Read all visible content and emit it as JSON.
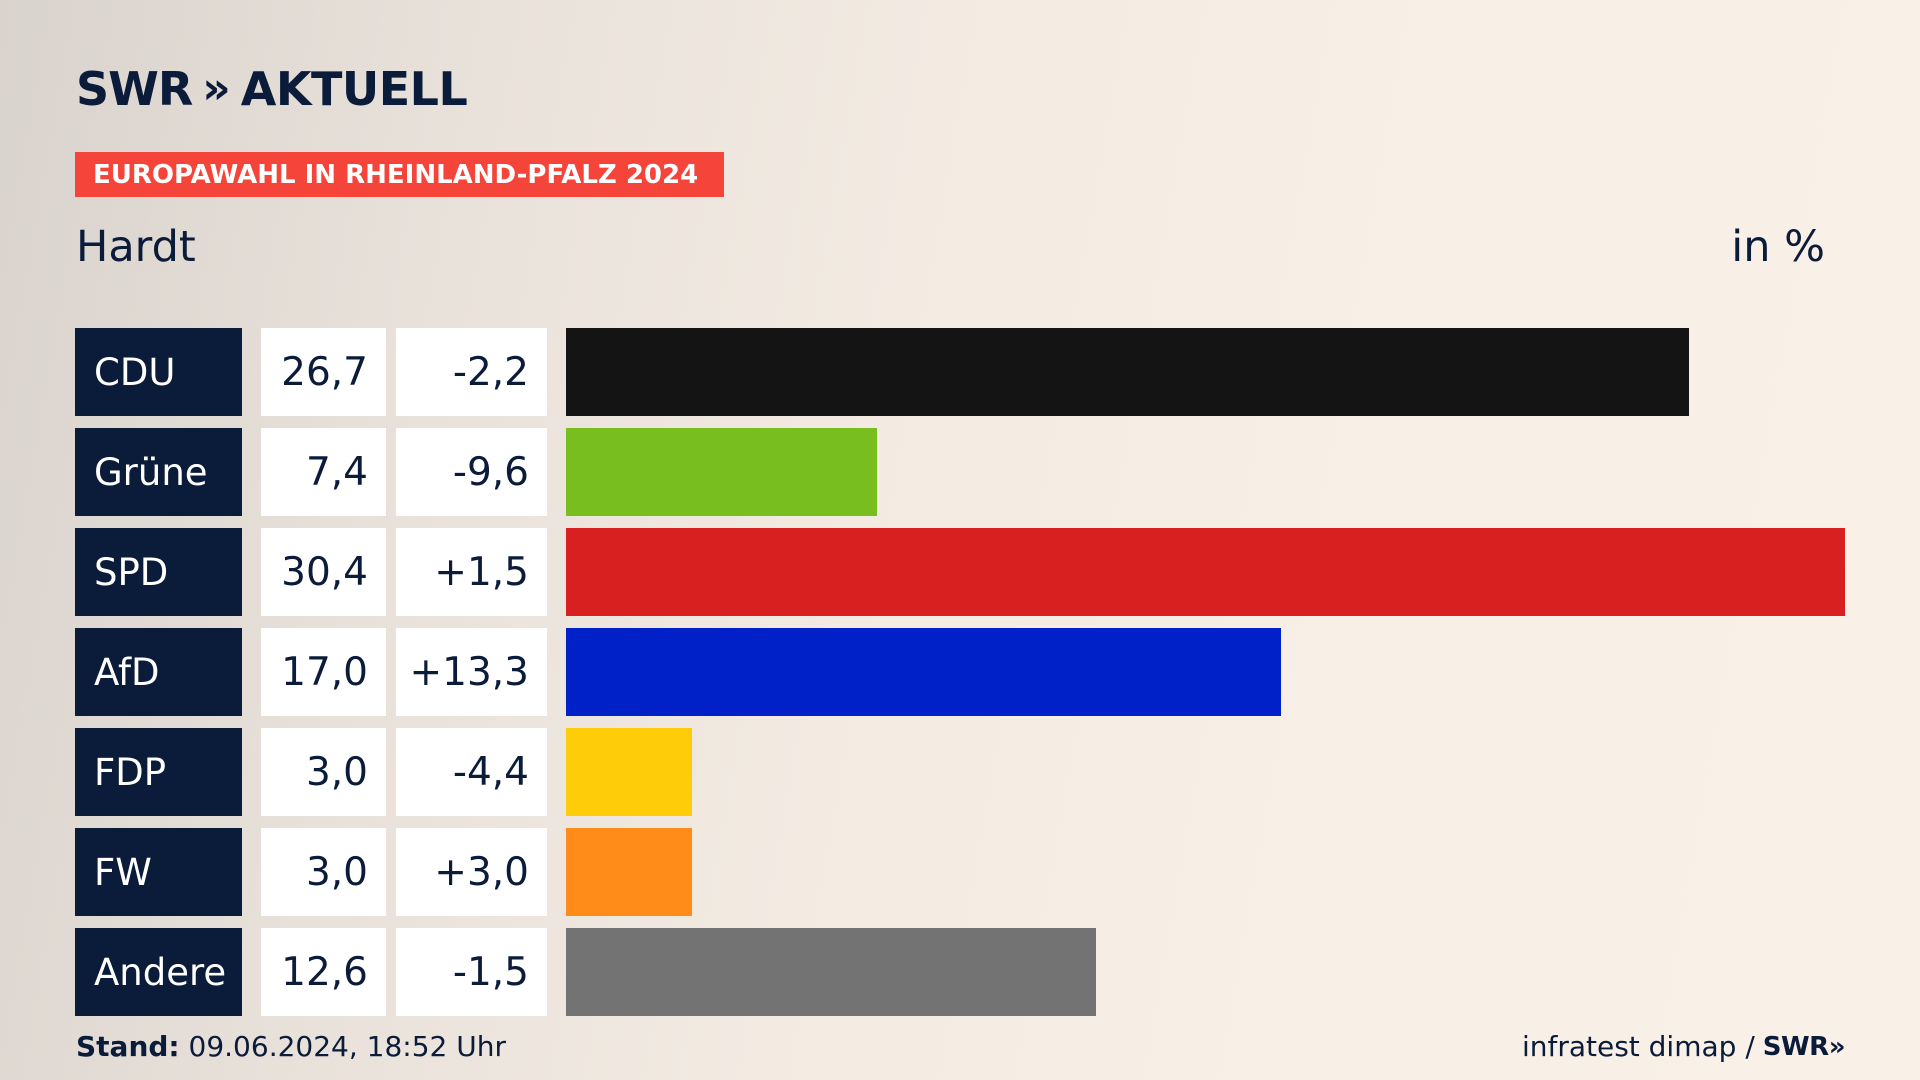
{
  "brand": {
    "logo_left": "SWR",
    "logo_chevrons": "»",
    "logo_right": "AKTUELL"
  },
  "banner": {
    "text": "EUROPAWAHL IN RHEINLAND-PFALZ 2024",
    "color": "#f5443a"
  },
  "region": "Hardt",
  "unit": "in %",
  "chart_data": {
    "type": "bar",
    "orientation": "horizontal",
    "categories": [
      "CDU",
      "Grüne",
      "SPD",
      "AfD",
      "FDP",
      "FW",
      "Andere"
    ],
    "values": [
      26.7,
      7.4,
      30.4,
      17.0,
      3.0,
      3.0,
      12.6
    ],
    "value_labels": [
      "26,7",
      "7,4",
      "30,4",
      "17,0",
      "3,0",
      "3,0",
      "12,6"
    ],
    "diff_labels": [
      "-2,2",
      "-9,6",
      "+1,5",
      "+13,3",
      "-4,4",
      "+3,0",
      "-1,5"
    ],
    "colors": [
      "#141414",
      "#78be1e",
      "#d7201f",
      "#0021c8",
      "#ffcc0a",
      "#ff8c19",
      "#737373"
    ],
    "xlim": [
      0,
      30.4
    ],
    "grid": false,
    "legend": "none"
  },
  "footer": {
    "stand_label": "Stand:",
    "stand_value": "09.06.2024, 18:52 Uhr",
    "source": "infratest dimap /",
    "source_brand": "SWR»"
  }
}
